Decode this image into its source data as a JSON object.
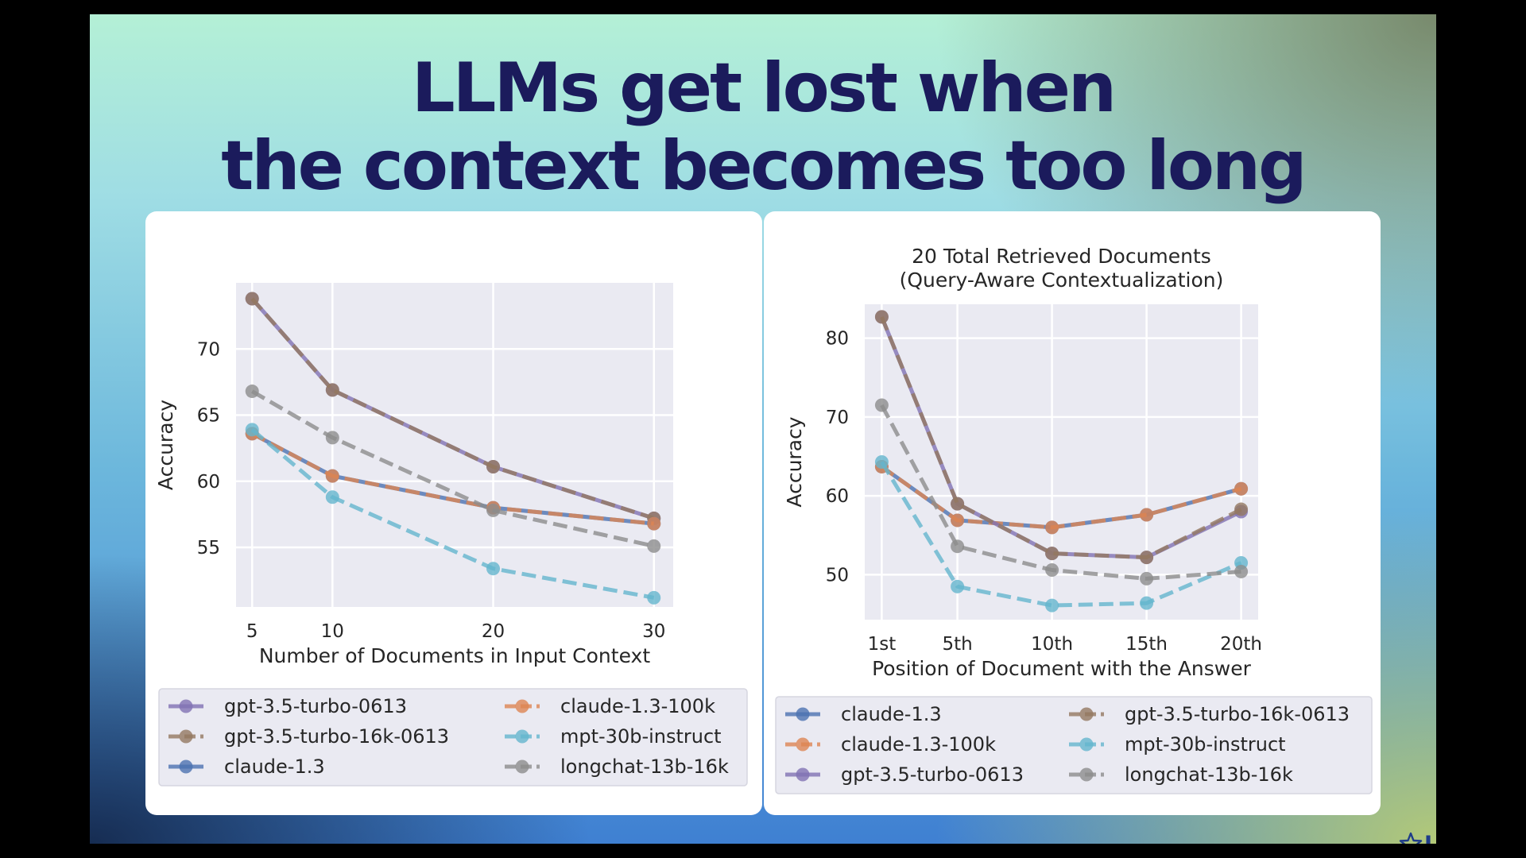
{
  "slide": {
    "title_lines": [
      "LLMs get lost when",
      "the context becomes too long"
    ],
    "logo_text": "LexFusion"
  },
  "colors": {
    "title": "#1b1b5c",
    "plot_background": "#eaeaf2",
    "gpt-3.5-turbo-0613": "#8172b3",
    "gpt-3.5-turbo-16k-0613": "#937860",
    "claude-1.3": "#4c72b0",
    "claude-1.3-100k": "#dd8452",
    "mpt-30b-instruct": "#64b5cd",
    "longchat-13b-16k": "#8c8c8c"
  },
  "chart_data": [
    {
      "type": "line",
      "title": "",
      "xlabel": "Number of Documents in Input Context",
      "ylabel": "Accuracy",
      "x": [
        5,
        10,
        20,
        30
      ],
      "xticks": [
        "5",
        "10",
        "20",
        "30"
      ],
      "yticks": [
        55,
        60,
        65,
        70
      ],
      "xlim": [
        4,
        31.2
      ],
      "ylim": [
        50.5,
        75
      ],
      "grid": true,
      "legend_position": "bottom",
      "legend_columns": 2,
      "series": [
        {
          "name": "gpt-3.5-turbo-0613",
          "color": "#8172b3",
          "dashed": false,
          "values": [
            73.8,
            66.9,
            61.1,
            57.2
          ]
        },
        {
          "name": "gpt-3.5-turbo-16k-0613",
          "color": "#937860",
          "dashed": true,
          "values": [
            73.8,
            66.9,
            61.1,
            57.2
          ]
        },
        {
          "name": "claude-1.3",
          "color": "#4c72b0",
          "dashed": false,
          "values": [
            63.6,
            60.4,
            58.0,
            56.8
          ]
        },
        {
          "name": "claude-1.3-100k",
          "color": "#dd8452",
          "dashed": true,
          "values": [
            63.6,
            60.4,
            58.0,
            56.8
          ]
        },
        {
          "name": "mpt-30b-instruct",
          "color": "#64b5cd",
          "dashed": true,
          "values": [
            63.9,
            58.8,
            53.4,
            51.2
          ]
        },
        {
          "name": "longchat-13b-16k",
          "color": "#8c8c8c",
          "dashed": true,
          "values": [
            66.8,
            63.3,
            57.8,
            55.1
          ]
        }
      ]
    },
    {
      "type": "line",
      "title": "20 Total Retrieved Documents\n(Query-Aware Contextualization)",
      "xlabel": "Position of Document with the Answer",
      "ylabel": "Accuracy",
      "categories": [
        "1st",
        "5th",
        "10th",
        "15th",
        "20th"
      ],
      "x": [
        1,
        5,
        10,
        15,
        20
      ],
      "yticks": [
        50,
        60,
        70,
        80
      ],
      "xlim": [
        0.1,
        20.9
      ],
      "ylim": [
        44.3,
        84.3
      ],
      "grid": true,
      "legend_position": "bottom",
      "legend_columns": 2,
      "series": [
        {
          "name": "claude-1.3",
          "color": "#4c72b0",
          "dashed": false,
          "values": [
            63.7,
            56.9,
            56.0,
            57.6,
            60.9
          ]
        },
        {
          "name": "claude-1.3-100k",
          "color": "#dd8452",
          "dashed": true,
          "values": [
            63.7,
            56.9,
            56.0,
            57.6,
            60.9
          ]
        },
        {
          "name": "gpt-3.5-turbo-0613",
          "color": "#8172b3",
          "dashed": false,
          "values": [
            82.7,
            59.0,
            52.7,
            52.2,
            58.0
          ]
        },
        {
          "name": "gpt-3.5-turbo-16k-0613",
          "color": "#937860",
          "dashed": true,
          "values": [
            82.7,
            59.0,
            52.7,
            52.2,
            58.3
          ]
        },
        {
          "name": "mpt-30b-instruct",
          "color": "#64b5cd",
          "dashed": true,
          "values": [
            64.3,
            48.5,
            46.1,
            46.4,
            51.5
          ]
        },
        {
          "name": "longchat-13b-16k",
          "color": "#8c8c8c",
          "dashed": true,
          "values": [
            71.5,
            53.6,
            50.6,
            49.5,
            50.4
          ]
        }
      ]
    }
  ]
}
